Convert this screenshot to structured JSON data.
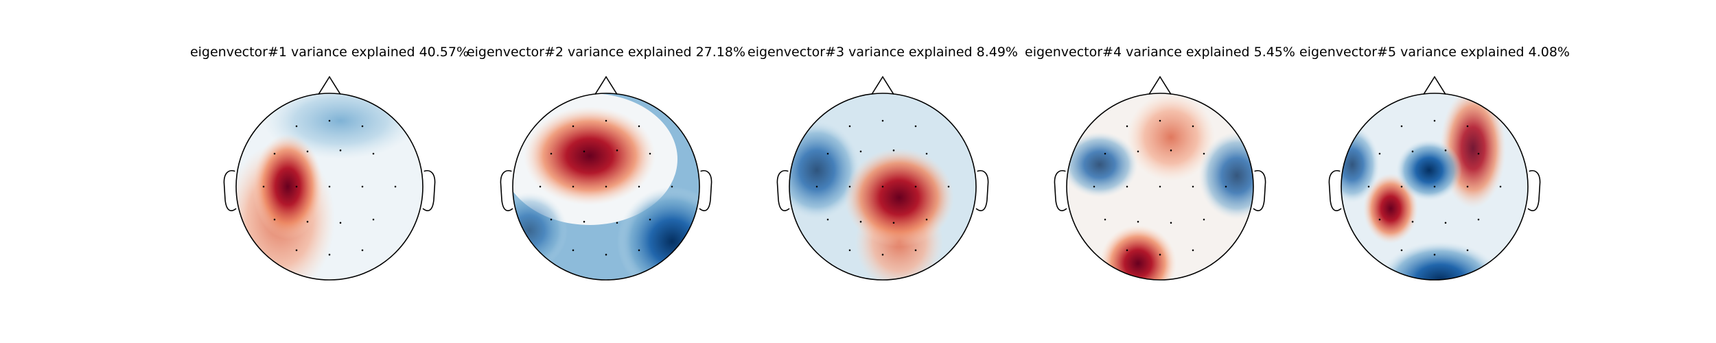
{
  "panels": [
    {
      "title": "eigenvector#1 variance explained 40.57%"
    },
    {
      "title": "eigenvector#2 variance explained 27.18%"
    },
    {
      "title": "eigenvector#3 variance explained 8.49%"
    },
    {
      "title": "eigenvector#4 variance explained 5.45%"
    },
    {
      "title": "eigenvector#5 variance explained 4.08%"
    }
  ]
}
